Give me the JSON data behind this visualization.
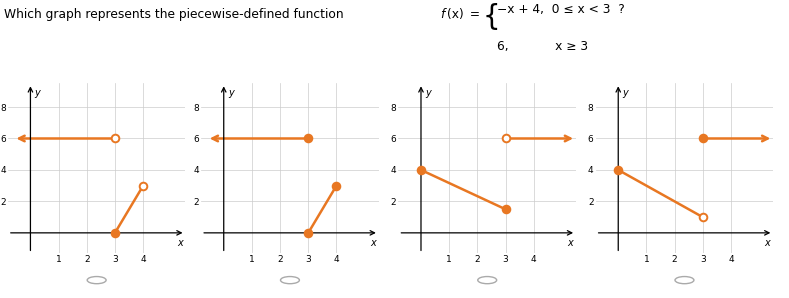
{
  "orange_color": "#E87722",
  "bg_color": "#ffffff",
  "grid_color": "#cccccc",
  "graphs": [
    {
      "horiz_x_start": 3.0,
      "horiz_x_end": -0.6,
      "horiz_y": 6,
      "horiz_start_filled": false,
      "slant_x1": 3,
      "slant_y1": 0,
      "slant_x2": 4.0,
      "slant_y2": 3,
      "slant_start_filled": true,
      "slant_end_filled": false
    },
    {
      "horiz_x_start": 3.0,
      "horiz_x_end": -0.6,
      "horiz_y": 6,
      "horiz_start_filled": true,
      "slant_x1": 3,
      "slant_y1": 0,
      "slant_x2": 4.0,
      "slant_y2": 3,
      "slant_start_filled": true,
      "slant_end_filled": true
    },
    {
      "horiz_x_start": 3.0,
      "horiz_x_end": 5.5,
      "horiz_y": 6,
      "horiz_start_filled": false,
      "slant_x1": 0,
      "slant_y1": 4,
      "slant_x2": 3,
      "slant_y2": 1.5,
      "slant_start_filled": true,
      "slant_end_filled": true
    },
    {
      "horiz_x_start": 3.0,
      "horiz_x_end": 5.5,
      "horiz_y": 6,
      "horiz_start_filled": true,
      "slant_x1": 0,
      "slant_y1": 4,
      "slant_x2": 3,
      "slant_y2": 1,
      "slant_start_filled": true,
      "slant_end_filled": false
    }
  ],
  "xlim": [
    -0.8,
    5.5
  ],
  "ylim": [
    -1.3,
    9.5
  ],
  "xticks": [
    1,
    2,
    3,
    4
  ],
  "yticks": [
    2,
    4,
    6,
    8
  ]
}
